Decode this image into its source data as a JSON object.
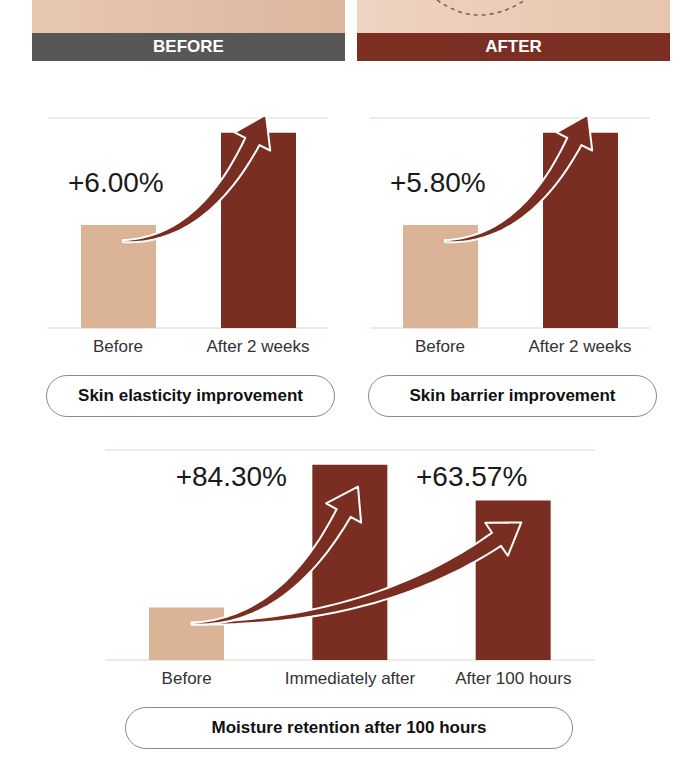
{
  "header": {
    "before": "BEFORE",
    "after": "AFTER"
  },
  "chart_data": [
    {
      "type": "bar",
      "title": "Skin elasticity improvement",
      "categories": [
        "Before",
        "After 2 weeks"
      ],
      "values": [
        2.45,
        4.65
      ],
      "colors": [
        "#dbb397",
        "#7a2e22"
      ],
      "ylim": [
        0,
        5
      ],
      "yticks": [
        0,
        1,
        2,
        3,
        4,
        5
      ],
      "grid": true,
      "tick_labels": "x",
      "annotations": [
        "+6.00%"
      ]
    },
    {
      "type": "bar",
      "title": "Skin barrier improvement",
      "categories": [
        "Before",
        "After 2 weeks"
      ],
      "values": [
        2.45,
        4.65
      ],
      "colors": [
        "#dbb397",
        "#7a2e22"
      ],
      "ylim": [
        0,
        5
      ],
      "yticks": [
        0,
        1,
        2,
        3,
        4,
        5
      ],
      "grid": true,
      "tick_labels": "x",
      "annotations": [
        "+5.80%"
      ]
    },
    {
      "type": "bar",
      "title": "Moisture retention after 100 hours",
      "categories": [
        "Before",
        "Immediately after",
        "After 100 hours"
      ],
      "values": [
        1.25,
        4.65,
        3.8
      ],
      "colors": [
        "#dbb397",
        "#7a2e22",
        "#7a2e22"
      ],
      "ylim": [
        0,
        5
      ],
      "yticks": [
        0,
        1,
        2,
        3,
        4,
        5
      ],
      "grid": true,
      "tick_labels": "x",
      "annotations": [
        "+84.30%",
        "+63.57%"
      ]
    }
  ]
}
